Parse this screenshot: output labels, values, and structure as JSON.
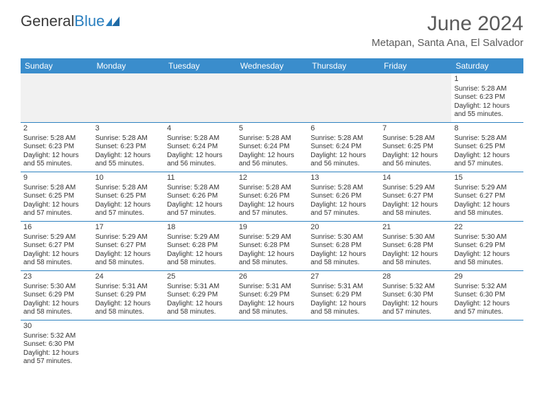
{
  "logo": {
    "text1": "General",
    "text2": "Blue"
  },
  "title": {
    "month": "June 2024",
    "location": "Metapan, Santa Ana, El Salvador"
  },
  "colors": {
    "header_bg": "#3a8dcc",
    "header_text": "#ffffff",
    "border": "#2a7fbf",
    "logo_blue": "#2a7fbf",
    "text": "#333333",
    "muted_bg": "#f1f1f1"
  },
  "weekdays": [
    "Sunday",
    "Monday",
    "Tuesday",
    "Wednesday",
    "Thursday",
    "Friday",
    "Saturday"
  ],
  "days": [
    {
      "n": 1,
      "rise": "5:28 AM",
      "set": "6:23 PM",
      "dl": "12 hours and 55 minutes."
    },
    {
      "n": 2,
      "rise": "5:28 AM",
      "set": "6:23 PM",
      "dl": "12 hours and 55 minutes."
    },
    {
      "n": 3,
      "rise": "5:28 AM",
      "set": "6:23 PM",
      "dl": "12 hours and 55 minutes."
    },
    {
      "n": 4,
      "rise": "5:28 AM",
      "set": "6:24 PM",
      "dl": "12 hours and 56 minutes."
    },
    {
      "n": 5,
      "rise": "5:28 AM",
      "set": "6:24 PM",
      "dl": "12 hours and 56 minutes."
    },
    {
      "n": 6,
      "rise": "5:28 AM",
      "set": "6:24 PM",
      "dl": "12 hours and 56 minutes."
    },
    {
      "n": 7,
      "rise": "5:28 AM",
      "set": "6:25 PM",
      "dl": "12 hours and 56 minutes."
    },
    {
      "n": 8,
      "rise": "5:28 AM",
      "set": "6:25 PM",
      "dl": "12 hours and 57 minutes."
    },
    {
      "n": 9,
      "rise": "5:28 AM",
      "set": "6:25 PM",
      "dl": "12 hours and 57 minutes."
    },
    {
      "n": 10,
      "rise": "5:28 AM",
      "set": "6:25 PM",
      "dl": "12 hours and 57 minutes."
    },
    {
      "n": 11,
      "rise": "5:28 AM",
      "set": "6:26 PM",
      "dl": "12 hours and 57 minutes."
    },
    {
      "n": 12,
      "rise": "5:28 AM",
      "set": "6:26 PM",
      "dl": "12 hours and 57 minutes."
    },
    {
      "n": 13,
      "rise": "5:28 AM",
      "set": "6:26 PM",
      "dl": "12 hours and 57 minutes."
    },
    {
      "n": 14,
      "rise": "5:29 AM",
      "set": "6:27 PM",
      "dl": "12 hours and 58 minutes."
    },
    {
      "n": 15,
      "rise": "5:29 AM",
      "set": "6:27 PM",
      "dl": "12 hours and 58 minutes."
    },
    {
      "n": 16,
      "rise": "5:29 AM",
      "set": "6:27 PM",
      "dl": "12 hours and 58 minutes."
    },
    {
      "n": 17,
      "rise": "5:29 AM",
      "set": "6:27 PM",
      "dl": "12 hours and 58 minutes."
    },
    {
      "n": 18,
      "rise": "5:29 AM",
      "set": "6:28 PM",
      "dl": "12 hours and 58 minutes."
    },
    {
      "n": 19,
      "rise": "5:29 AM",
      "set": "6:28 PM",
      "dl": "12 hours and 58 minutes."
    },
    {
      "n": 20,
      "rise": "5:30 AM",
      "set": "6:28 PM",
      "dl": "12 hours and 58 minutes."
    },
    {
      "n": 21,
      "rise": "5:30 AM",
      "set": "6:28 PM",
      "dl": "12 hours and 58 minutes."
    },
    {
      "n": 22,
      "rise": "5:30 AM",
      "set": "6:29 PM",
      "dl": "12 hours and 58 minutes."
    },
    {
      "n": 23,
      "rise": "5:30 AM",
      "set": "6:29 PM",
      "dl": "12 hours and 58 minutes."
    },
    {
      "n": 24,
      "rise": "5:31 AM",
      "set": "6:29 PM",
      "dl": "12 hours and 58 minutes."
    },
    {
      "n": 25,
      "rise": "5:31 AM",
      "set": "6:29 PM",
      "dl": "12 hours and 58 minutes."
    },
    {
      "n": 26,
      "rise": "5:31 AM",
      "set": "6:29 PM",
      "dl": "12 hours and 58 minutes."
    },
    {
      "n": 27,
      "rise": "5:31 AM",
      "set": "6:29 PM",
      "dl": "12 hours and 58 minutes."
    },
    {
      "n": 28,
      "rise": "5:32 AM",
      "set": "6:30 PM",
      "dl": "12 hours and 57 minutes."
    },
    {
      "n": 29,
      "rise": "5:32 AM",
      "set": "6:30 PM",
      "dl": "12 hours and 57 minutes."
    },
    {
      "n": 30,
      "rise": "5:32 AM",
      "set": "6:30 PM",
      "dl": "12 hours and 57 minutes."
    }
  ],
  "labels": {
    "sunrise": "Sunrise:",
    "sunset": "Sunset:",
    "daylight": "Daylight:"
  },
  "layout": {
    "first_weekday_index": 6,
    "days_in_month": 30
  }
}
